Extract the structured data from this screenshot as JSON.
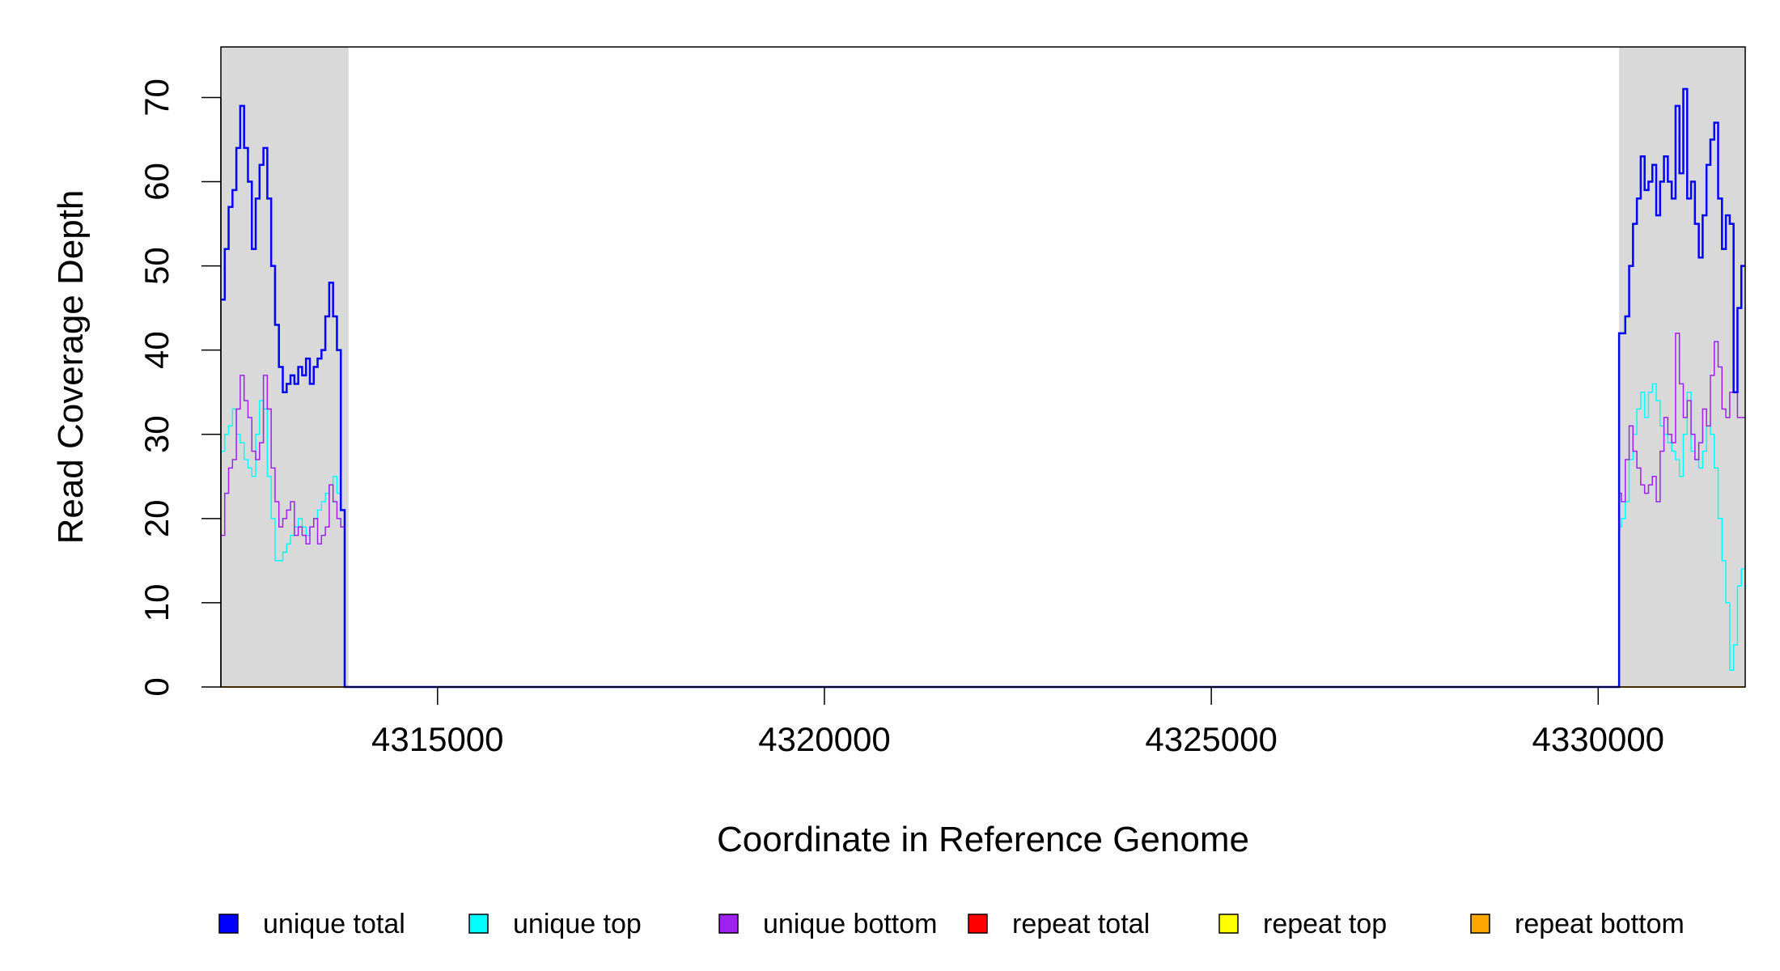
{
  "chart_data": {
    "type": "line",
    "title": "",
    "xlabel": "Coordinate in Reference Genome",
    "ylabel": "Read Coverage Depth",
    "xlim": [
      4312200,
      4331900
    ],
    "ylim": [
      0,
      76
    ],
    "x_ticks": [
      4315000,
      4320000,
      4325000,
      4330000
    ],
    "y_ticks": [
      0,
      10,
      20,
      30,
      40,
      50,
      60,
      70
    ],
    "grid": false,
    "legend_position": "bottom",
    "shaded_regions": [
      {
        "x0": 4312200,
        "x1": 4313850,
        "color": "#d9d9d9"
      },
      {
        "x0": 4330270,
        "x1": 4331900,
        "color": "#d9d9d9"
      }
    ],
    "legend": [
      {
        "name": "unique total",
        "color": "#0000ff"
      },
      {
        "name": "unique top",
        "color": "#00ffff"
      },
      {
        "name": "unique bottom",
        "color": "#a020f0"
      },
      {
        "name": "repeat total",
        "color": "#ff0000"
      },
      {
        "name": "repeat top",
        "color": "#ffff00"
      },
      {
        "name": "repeat bottom",
        "color": "#ffa500"
      }
    ],
    "series": [
      {
        "name": "unique total",
        "color": "#0000ff",
        "width": 2.5,
        "x": [
          4312200,
          4312250,
          4312300,
          4312350,
          4312400,
          4312450,
          4312500,
          4312550,
          4312600,
          4312650,
          4312700,
          4312750,
          4312800,
          4312850,
          4312900,
          4312950,
          4313000,
          4313050,
          4313100,
          4313150,
          4313200,
          4313250,
          4313300,
          4313350,
          4313400,
          4313450,
          4313500,
          4313550,
          4313600,
          4313650,
          4313700,
          4313750,
          4313800,
          4313850,
          4313870,
          4330250,
          4330270,
          4330300,
          4330350,
          4330400,
          4330450,
          4330500,
          4330550,
          4330600,
          4330650,
          4330700,
          4330750,
          4330800,
          4330850,
          4330900,
          4330950,
          4331000,
          4331050,
          4331100,
          4331150,
          4331200,
          4331250,
          4331300,
          4331350,
          4331400,
          4331450,
          4331500,
          4331550,
          4331600,
          4331650,
          4331700,
          4331750,
          4331800,
          4331850,
          4331900
        ],
        "y": [
          46,
          52,
          57,
          59,
          64,
          69,
          64,
          60,
          52,
          58,
          62,
          64,
          58,
          50,
          43,
          38,
          35,
          36,
          37,
          36,
          38,
          37,
          39,
          36,
          38,
          39,
          40,
          44,
          48,
          44,
          40,
          21,
          0,
          0,
          0,
          0,
          42,
          42,
          44,
          50,
          55,
          58,
          63,
          59,
          60,
          62,
          56,
          60,
          63,
          60,
          58,
          69,
          61,
          71,
          58,
          60,
          55,
          51,
          56,
          62,
          65,
          67,
          58,
          52,
          56,
          55,
          35,
          45,
          50,
          50
        ]
      },
      {
        "name": "unique top",
        "color": "#00ffff",
        "width": 1.5,
        "x": [
          4312200,
          4312250,
          4312300,
          4312350,
          4312400,
          4312450,
          4312500,
          4312550,
          4312600,
          4312650,
          4312700,
          4312750,
          4312800,
          4312850,
          4312900,
          4312950,
          4313000,
          4313050,
          4313100,
          4313150,
          4313200,
          4313250,
          4313300,
          4313350,
          4313400,
          4313450,
          4313500,
          4313550,
          4313600,
          4313650,
          4313700,
          4313750,
          4313800,
          4313850,
          4313870,
          4330250,
          4330270,
          4330300,
          4330350,
          4330400,
          4330450,
          4330500,
          4330550,
          4330600,
          4330650,
          4330700,
          4330750,
          4330800,
          4330850,
          4330900,
          4330950,
          4331000,
          4331050,
          4331100,
          4331150,
          4331200,
          4331250,
          4331300,
          4331350,
          4331400,
          4331450,
          4331500,
          4331550,
          4331600,
          4331650,
          4331700,
          4331750,
          4331800,
          4331850,
          4331900
        ],
        "y": [
          28,
          30,
          31,
          33,
          30,
          29,
          27,
          26,
          25,
          30,
          34,
          33,
          25,
          20,
          15,
          15,
          16,
          17,
          18,
          19,
          20,
          19,
          18,
          19,
          20,
          21,
          22,
          23,
          24,
          25,
          23,
          21,
          0,
          0,
          0,
          0,
          19,
          20,
          22,
          27,
          30,
          33,
          35,
          32,
          35,
          36,
          34,
          31,
          30,
          29,
          28,
          27,
          25,
          30,
          35,
          28,
          27,
          26,
          28,
          31,
          30,
          26,
          20,
          15,
          10,
          2,
          5,
          12,
          14,
          14
        ]
      },
      {
        "name": "unique bottom",
        "color": "#a020f0",
        "width": 1.5,
        "x": [
          4312200,
          4312250,
          4312300,
          4312350,
          4312400,
          4312450,
          4312500,
          4312550,
          4312600,
          4312650,
          4312700,
          4312750,
          4312800,
          4312850,
          4312900,
          4312950,
          4313000,
          4313050,
          4313100,
          4313150,
          4313200,
          4313250,
          4313300,
          4313350,
          4313400,
          4313450,
          4313500,
          4313550,
          4313600,
          4313650,
          4313700,
          4313750,
          4313800,
          4313850,
          4313870,
          4330250,
          4330270,
          4330300,
          4330350,
          4330400,
          4330450,
          4330500,
          4330550,
          4330600,
          4330650,
          4330700,
          4330750,
          4330800,
          4330850,
          4330900,
          4330950,
          4331000,
          4331050,
          4331100,
          4331150,
          4331200,
          4331250,
          4331300,
          4331350,
          4331400,
          4331450,
          4331500,
          4331550,
          4331600,
          4331650,
          4331700,
          4331750,
          4331800,
          4331850,
          4331900
        ],
        "y": [
          18,
          23,
          26,
          27,
          33,
          37,
          34,
          32,
          28,
          27,
          29,
          37,
          33,
          26,
          22,
          19,
          20,
          21,
          22,
          18,
          19,
          18,
          17,
          19,
          20,
          17,
          18,
          19,
          24,
          22,
          20,
          19,
          0,
          0,
          0,
          0,
          23,
          22,
          27,
          31,
          28,
          26,
          24,
          23,
          24,
          25,
          22,
          28,
          32,
          30,
          29,
          42,
          36,
          32,
          34,
          30,
          27,
          29,
          33,
          31,
          37,
          41,
          38,
          33,
          32,
          35,
          35,
          32,
          32,
          32
        ]
      },
      {
        "name": "repeat total",
        "color": "#ff0000",
        "width": 1.5,
        "x": [
          4312200,
          4331900
        ],
        "y": [
          0,
          0
        ]
      },
      {
        "name": "repeat top",
        "color": "#ffff00",
        "width": 1.5,
        "x": [
          4312200,
          4331900
        ],
        "y": [
          0,
          0
        ]
      },
      {
        "name": "repeat bottom",
        "color": "#ffa500",
        "width": 2,
        "x": [
          4312200,
          4331900
        ],
        "y": [
          0,
          0
        ]
      }
    ]
  }
}
